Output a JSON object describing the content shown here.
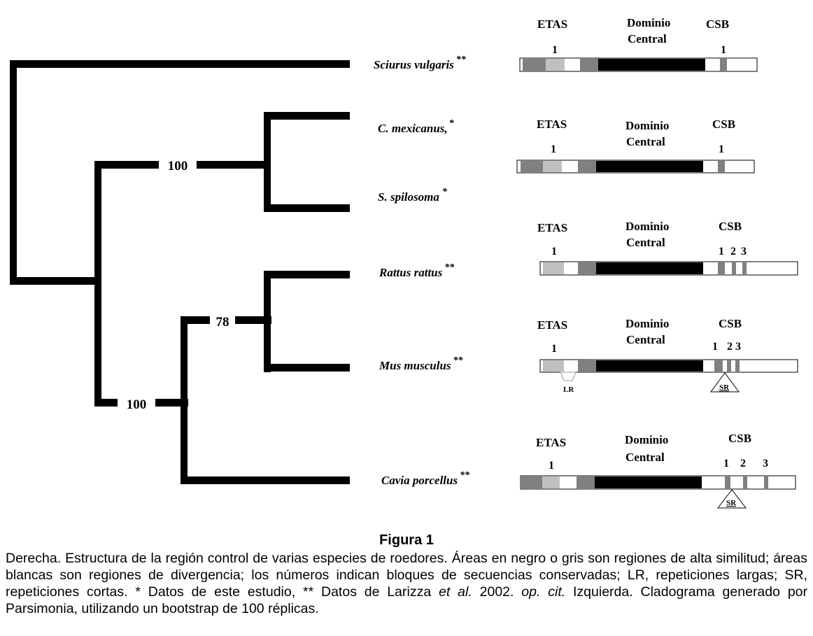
{
  "tree": {
    "taxa": [
      {
        "name": "Sciurus vulgaris",
        "note": "**"
      },
      {
        "name": "C. mexicanus,",
        "note": "*"
      },
      {
        "name": "S. spilosoma",
        "note": "*"
      },
      {
        "name": "Rattus rattus",
        "note": "**"
      },
      {
        "name": "Mus musculus",
        "note": "**"
      },
      {
        "name": "Cavia porcellus",
        "note": "**"
      }
    ],
    "bootstrap": [
      "100",
      "78",
      "100"
    ]
  },
  "region_labels": {
    "etas": "ETAS",
    "dominio": "Dominio",
    "central": "Central",
    "csb": "CSB"
  },
  "csb_numbers": {
    "one": "1",
    "two": "2",
    "three": "3"
  },
  "repeat_labels": {
    "lr": "LR",
    "sr": "SR"
  },
  "colors": {
    "black": "#000000",
    "dark_gray": "#808080",
    "light_gray": "#c0c0c0",
    "white": "#ffffff"
  },
  "caption": {
    "title": "Figura 1",
    "p1": "Derecha. Estructura de la región control de varias especies de roedores. Áreas en negro o gris son regiones de alta similitud; áreas blancas son regiones de divergencia; los números indican bloques de secuencias conservadas; LR, repeticiones largas; SR, repeticiones cortas. * Datos de este estudio, ** Datos de Larizza",
    "etal": "et al.",
    "p2": " 2002. ",
    "opcit": "op. cit.",
    "p3": " Izquierda. Cladograma generado por Parsimonia, utilizando un bootstrap de 100 réplicas."
  }
}
